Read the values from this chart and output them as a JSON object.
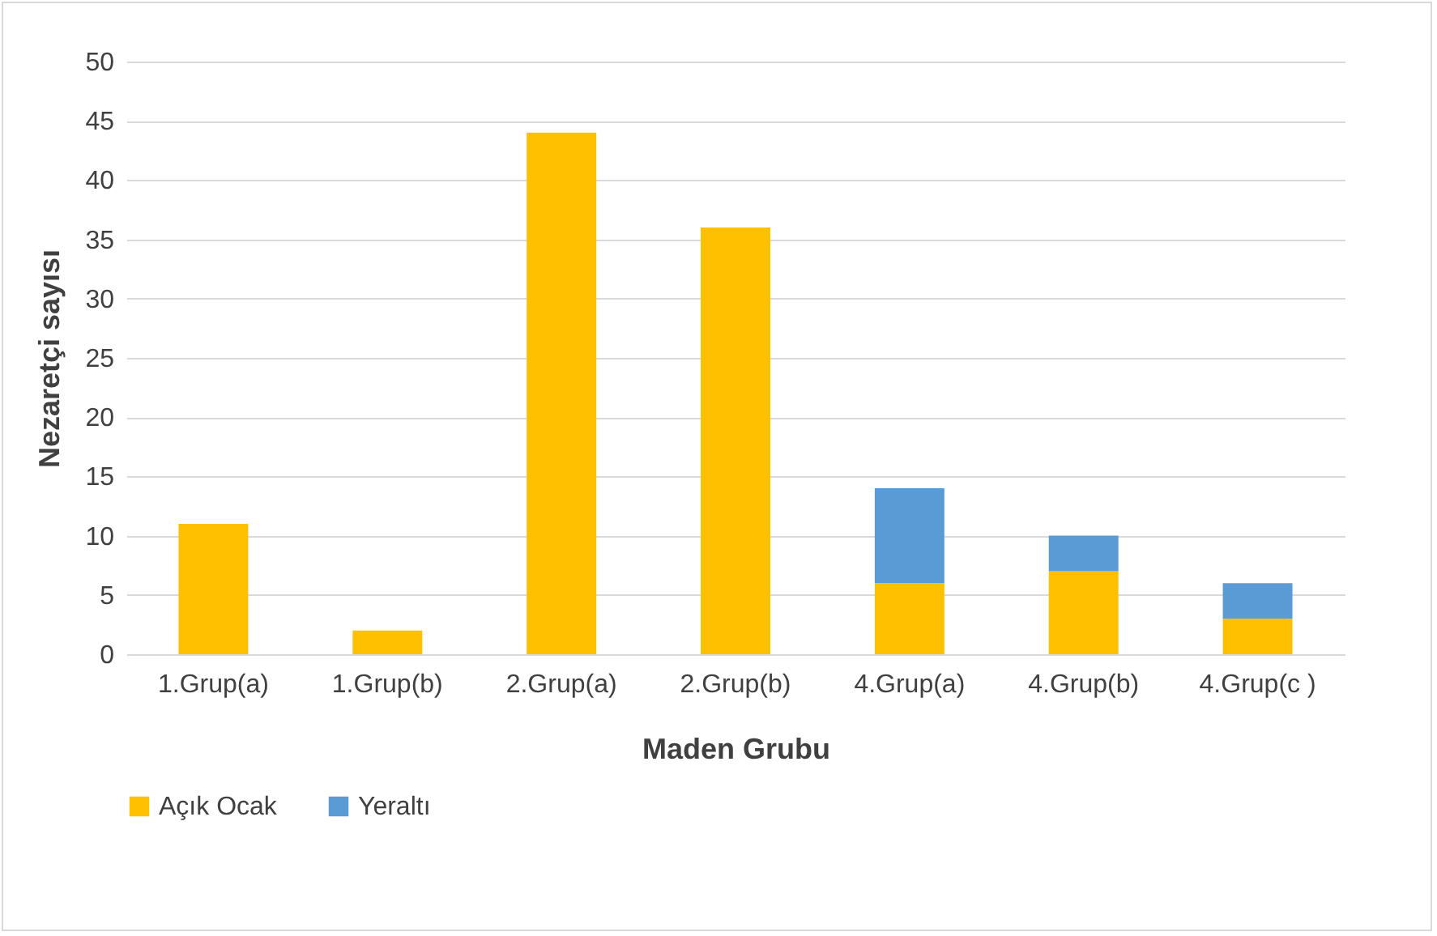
{
  "chart_data": {
    "type": "bar",
    "xlabel": "Maden Grubu",
    "ylabel": "Nezaretçi sayısı",
    "categories": [
      "1.Grup(a)",
      "1.Grup(b)",
      "2.Grup(a)",
      "2.Grup(b)",
      "4.Grup(a)",
      "4.Grup(b)",
      "4.Grup(c )"
    ],
    "series": [
      {
        "name": "Açık Ocak",
        "color": "#ffc000",
        "values": [
          11,
          2,
          44,
          36,
          6,
          7,
          3
        ]
      },
      {
        "name": "Yeraltı",
        "color": "#5b9bd5",
        "values": [
          null,
          null,
          null,
          null,
          8,
          3,
          3
        ]
      }
    ],
    "stacked": true,
    "ylim": [
      0,
      50
    ],
    "yticks": [
      0,
      5,
      10,
      15,
      20,
      25,
      30,
      35,
      40,
      45,
      50
    ],
    "grid": "y",
    "legend": "bottom"
  }
}
